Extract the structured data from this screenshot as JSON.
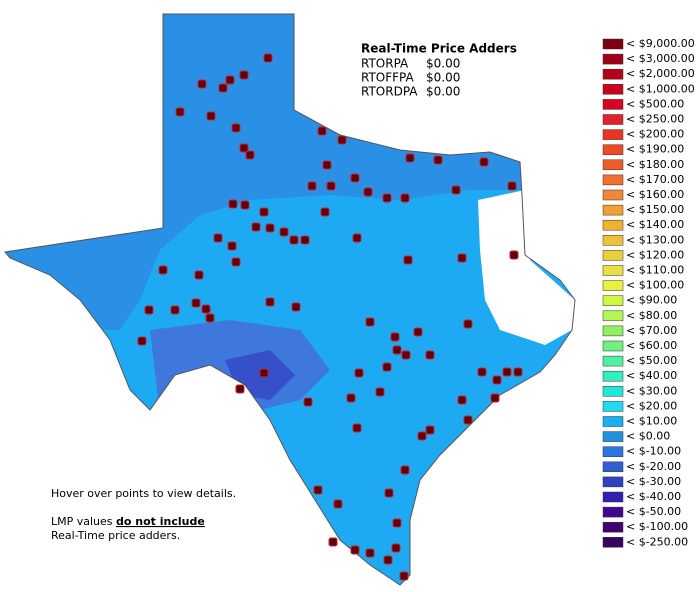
{
  "price_adders": {
    "title": "Real-Time Price Adders",
    "rows": [
      {
        "name": "RTORPA",
        "value": "$0.00"
      },
      {
        "name": "RTOFFPA",
        "value": "$0.00"
      },
      {
        "name": "RTORDPA",
        "value": "$0.00"
      }
    ]
  },
  "notes": {
    "hover": "Hover over points to view details.",
    "lmp_prefix": "LMP values",
    "lmp_emphasis": "do not include",
    "lmp_suffix": "Real-Time price adders."
  },
  "legend": [
    {
      "label": "< $9,000.00",
      "color": "#7c0012"
    },
    {
      "label": "< $3,000.00",
      "color": "#a00016"
    },
    {
      "label": "< $2,000.00",
      "color": "#b8001a"
    },
    {
      "label": "< $1,000.00",
      "color": "#cc001e"
    },
    {
      "label": "< $500.00",
      "color": "#da0024"
    },
    {
      "label": "< $250.00",
      "color": "#e0202a"
    },
    {
      "label": "< $200.00",
      "color": "#e83420"
    },
    {
      "label": "< $190.00",
      "color": "#f04a22"
    },
    {
      "label": "< $180.00",
      "color": "#f05c28"
    },
    {
      "label": "< $170.00",
      "color": "#f07030"
    },
    {
      "label": "< $160.00",
      "color": "#f08838"
    },
    {
      "label": "< $150.00",
      "color": "#f0a032"
    },
    {
      "label": "< $140.00",
      "color": "#f0b032"
    },
    {
      "label": "< $130.00",
      "color": "#f0c038"
    },
    {
      "label": "< $120.00",
      "color": "#e8d038"
    },
    {
      "label": "< $110.00",
      "color": "#e8e040"
    },
    {
      "label": "< $100.00",
      "color": "#e8f040"
    },
    {
      "label": "< $90.00",
      "color": "#d0f840"
    },
    {
      "label": "< $80.00",
      "color": "#b0f850"
    },
    {
      "label": "< $70.00",
      "color": "#90f060"
    },
    {
      "label": "< $60.00",
      "color": "#70f080"
    },
    {
      "label": "< $50.00",
      "color": "#50f0a0"
    },
    {
      "label": "< $40.00",
      "color": "#30f0c0"
    },
    {
      "label": "< $30.00",
      "color": "#20e8d8"
    },
    {
      "label": "< $20.00",
      "color": "#20d8f0"
    },
    {
      "label": "< $10.00",
      "color": "#18b0f0"
    },
    {
      "label": "< $0.00",
      "color": "#2090e0"
    },
    {
      "label": "< $-10.00",
      "color": "#2878e0"
    },
    {
      "label": "< $-20.00",
      "color": "#3060d0"
    },
    {
      "label": "< $-30.00",
      "color": "#3040c0"
    },
    {
      "label": "< $-40.00",
      "color": "#3020b0"
    },
    {
      "label": "< $-50.00",
      "color": "#400890"
    },
    {
      "label": "< $-100.00",
      "color": "#400070"
    },
    {
      "label": "< $-250.00",
      "color": "#380060"
    }
  ]
}
